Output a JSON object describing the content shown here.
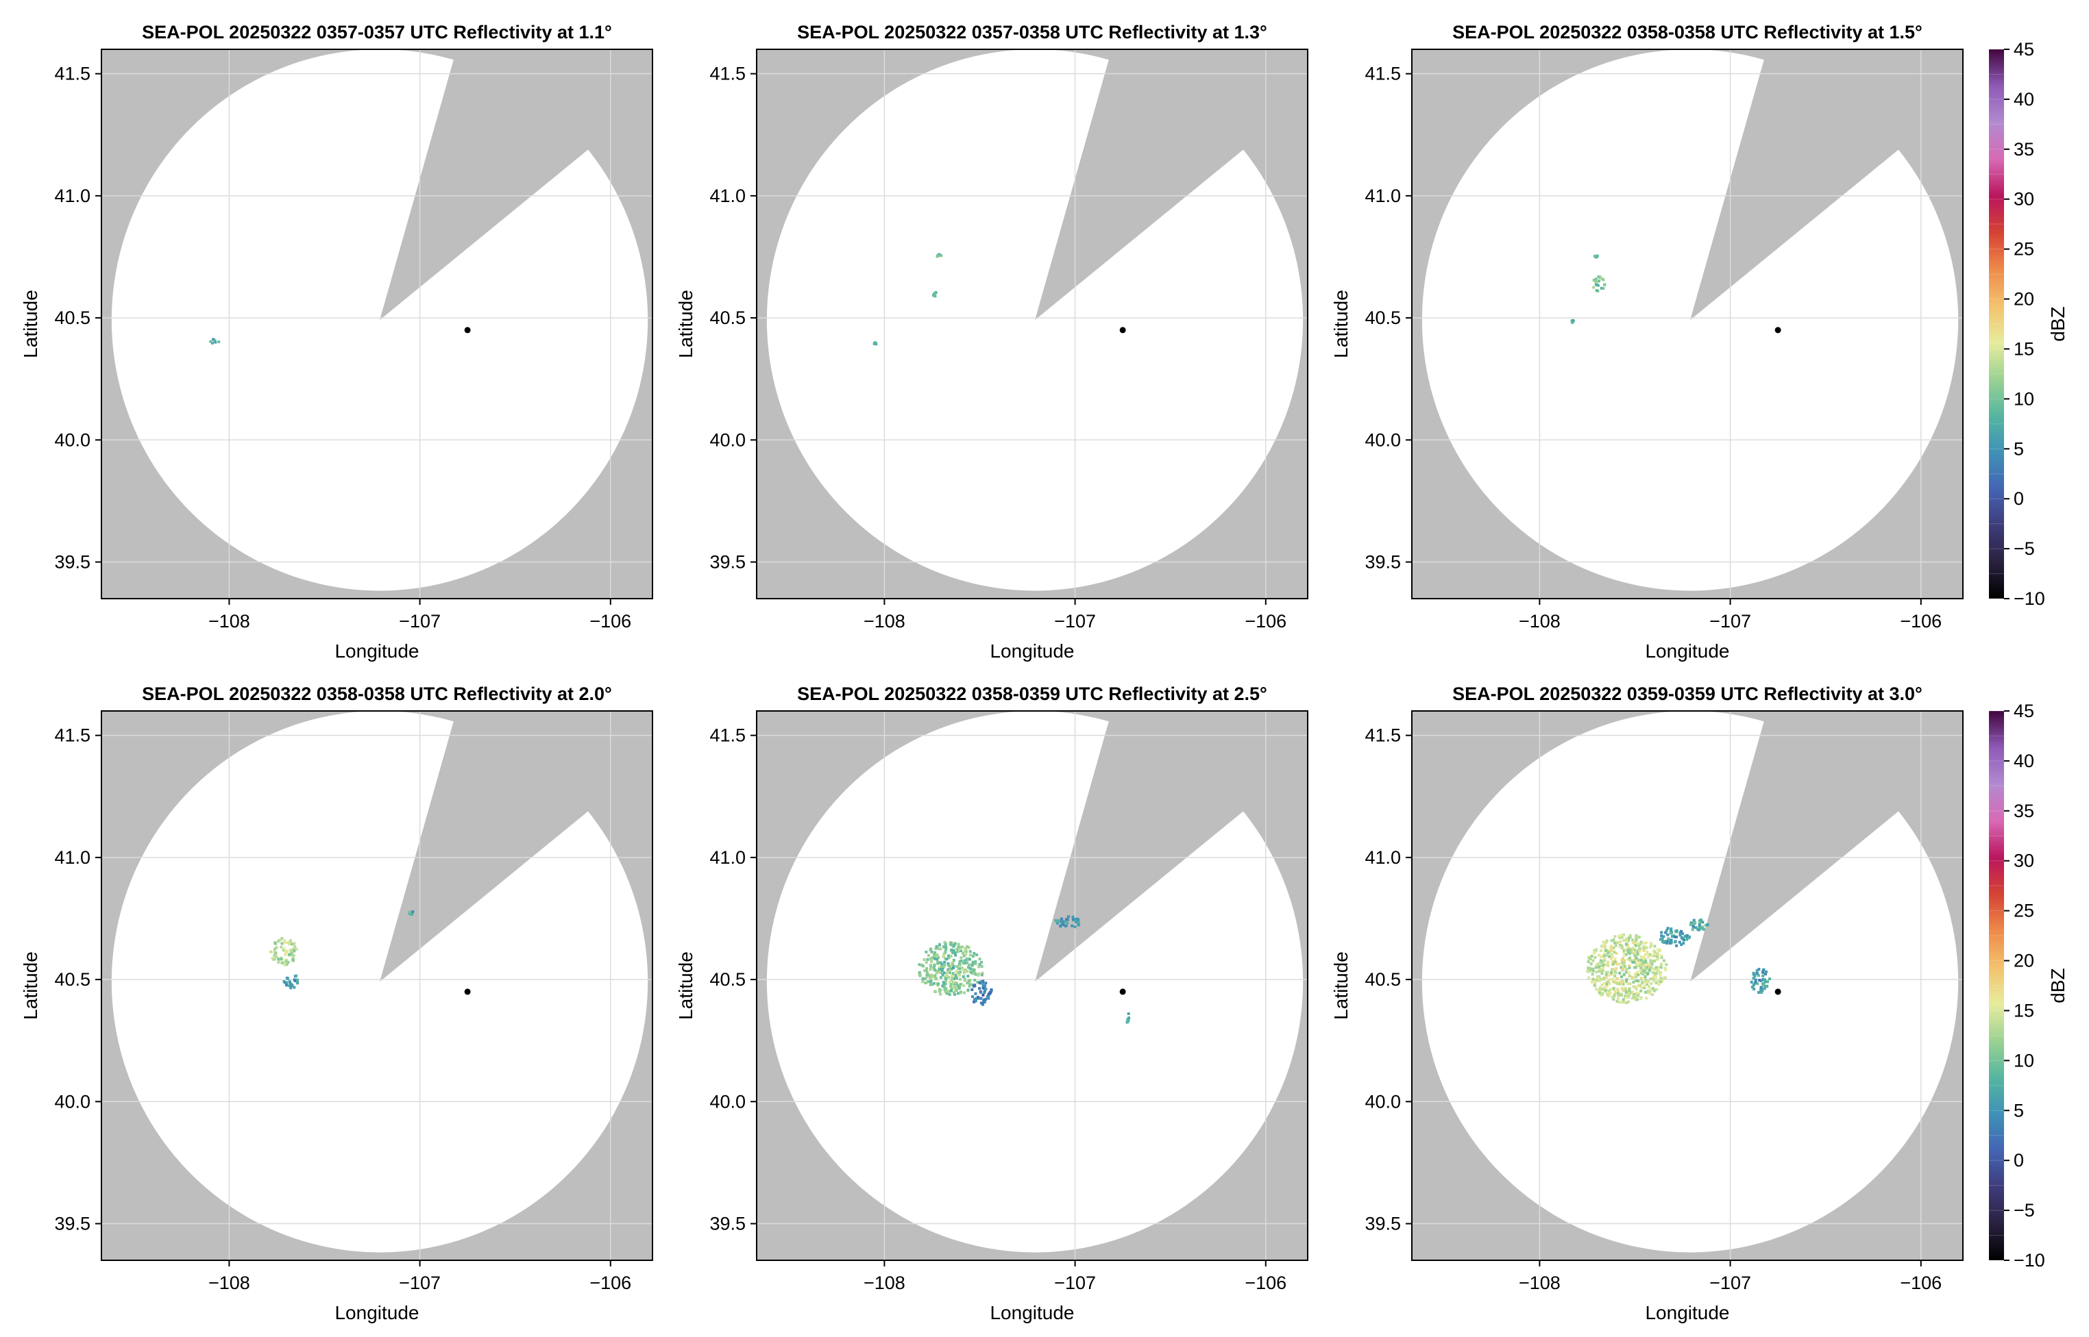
{
  "figure": {
    "colorbar": {
      "label": "dBZ",
      "ticks": [
        45,
        40,
        35,
        30,
        25,
        20,
        15,
        10,
        5,
        0,
        -5,
        -10
      ],
      "range": [
        -10,
        45
      ],
      "stops": [
        "#000000",
        "#2a2140",
        "#3e3c7a",
        "#4464b4",
        "#3f92b6",
        "#56b6a0",
        "#9cd292",
        "#e7ec9e",
        "#f3c26c",
        "#ee8a4a",
        "#d54235",
        "#b9165e",
        "#d86ab5",
        "#b28ad0",
        "#8e5ab6",
        "#42063e"
      ]
    },
    "colors": {
      "outside_range": "#bebebe",
      "inside_range": "#ffffff",
      "grid": "#dcdcdc",
      "radar_marker": "#000000"
    }
  },
  "chart_data": [
    {
      "type": "heatmap",
      "title": "SEA-POL 20250322 0357-0357 UTC Reflectivity at 1.1°",
      "xlabel": "Longitude",
      "ylabel": "Latitude",
      "xlim": [
        -108.67,
        -105.78
      ],
      "ylim": [
        39.35,
        41.6
      ],
      "xticks": [
        {
          "value": -108,
          "label": "−108"
        },
        {
          "value": -107,
          "label": "−107"
        },
        {
          "value": -106,
          "label": "−106"
        }
      ],
      "yticks": [
        {
          "value": 41.5,
          "label": "41.5"
        },
        {
          "value": 41.0,
          "label": "41.0"
        },
        {
          "value": 40.5,
          "label": "40.5"
        },
        {
          "value": 40.0,
          "label": "40.0"
        },
        {
          "value": 39.5,
          "label": "39.5"
        }
      ],
      "grid": true,
      "radar_site": {
        "lon": -106.75,
        "lat": 40.45
      },
      "echoes": [
        {
          "lon": -108.08,
          "lat": 40.41,
          "dlon": 0.06,
          "dlat": 0.02,
          "dbz": 8
        }
      ]
    },
    {
      "type": "heatmap",
      "title": "SEA-POL 20250322 0357-0358 UTC Reflectivity at 1.3°",
      "xlabel": "Longitude",
      "ylabel": "Latitude",
      "xlim": [
        -108.67,
        -105.78
      ],
      "ylim": [
        39.35,
        41.6
      ],
      "xticks": [
        {
          "value": -108,
          "label": "−108"
        },
        {
          "value": -107,
          "label": "−107"
        },
        {
          "value": -106,
          "label": "−106"
        }
      ],
      "yticks": [
        {
          "value": 41.5,
          "label": "41.5"
        },
        {
          "value": 41.0,
          "label": "41.0"
        },
        {
          "value": 40.5,
          "label": "40.5"
        },
        {
          "value": 40.0,
          "label": "40.0"
        },
        {
          "value": 39.5,
          "label": "39.5"
        }
      ],
      "grid": true,
      "radar_site": {
        "lon": -106.75,
        "lat": 40.45
      },
      "echoes": [
        {
          "lon": -108.06,
          "lat": 40.4,
          "dlon": 0.02,
          "dlat": 0.01,
          "dbz": 8
        },
        {
          "lon": -107.74,
          "lat": 40.6,
          "dlon": 0.02,
          "dlat": 0.02,
          "dbz": 8
        },
        {
          "lon": -107.72,
          "lat": 40.76,
          "dlon": 0.03,
          "dlat": 0.01,
          "dbz": 8
        }
      ]
    },
    {
      "type": "heatmap",
      "title": "SEA-POL 20250322 0358-0358 UTC Reflectivity at 1.5°",
      "xlabel": "Longitude",
      "ylabel": "Latitude",
      "xlim": [
        -108.67,
        -105.78
      ],
      "ylim": [
        39.35,
        41.6
      ],
      "xticks": [
        {
          "value": -108,
          "label": "−108"
        },
        {
          "value": -107,
          "label": "−107"
        },
        {
          "value": -106,
          "label": "−106"
        }
      ],
      "yticks": [
        {
          "value": 41.5,
          "label": "41.5"
        },
        {
          "value": 41.0,
          "label": "41.0"
        },
        {
          "value": 40.5,
          "label": "40.5"
        },
        {
          "value": 40.0,
          "label": "40.0"
        },
        {
          "value": 39.5,
          "label": "39.5"
        }
      ],
      "grid": true,
      "radar_site": {
        "lon": -106.75,
        "lat": 40.45
      },
      "echoes": [
        {
          "lon": -107.7,
          "lat": 40.64,
          "dlon": 0.07,
          "dlat": 0.07,
          "dbz": 10
        },
        {
          "lon": -107.71,
          "lat": 40.76,
          "dlon": 0.02,
          "dlat": 0.02,
          "dbz": 9
        },
        {
          "lon": -107.83,
          "lat": 40.49,
          "dlon": 0.02,
          "dlat": 0.01,
          "dbz": 8
        }
      ]
    },
    {
      "type": "heatmap",
      "title": "SEA-POL 20250322 0358-0358 UTC Reflectivity at 2.0°",
      "xlabel": "Longitude",
      "ylabel": "Latitude",
      "xlim": [
        -108.67,
        -105.78
      ],
      "ylim": [
        39.35,
        41.6
      ],
      "xticks": [
        {
          "value": -108,
          "label": "−108"
        },
        {
          "value": -107,
          "label": "−107"
        },
        {
          "value": -106,
          "label": "−106"
        }
      ],
      "yticks": [
        {
          "value": 41.5,
          "label": "41.5"
        },
        {
          "value": 41.0,
          "label": "41.0"
        },
        {
          "value": 40.5,
          "label": "40.5"
        },
        {
          "value": 40.0,
          "label": "40.0"
        },
        {
          "value": 39.5,
          "label": "39.5"
        }
      ],
      "grid": true,
      "radar_site": {
        "lon": -106.75,
        "lat": 40.45
      },
      "echoes": [
        {
          "lon": -107.72,
          "lat": 40.62,
          "dlon": 0.14,
          "dlat": 0.11,
          "dbz": 13
        },
        {
          "lon": -107.68,
          "lat": 40.5,
          "dlon": 0.08,
          "dlat": 0.06,
          "dbz": 6
        },
        {
          "lon": -107.05,
          "lat": 40.78,
          "dlon": 0.03,
          "dlat": 0.02,
          "dbz": 7
        }
      ]
    },
    {
      "type": "heatmap",
      "title": "SEA-POL 20250322 0358-0359 UTC Reflectivity at 2.5°",
      "xlabel": "Longitude",
      "ylabel": "Latitude",
      "xlim": [
        -108.67,
        -105.78
      ],
      "ylim": [
        39.35,
        41.6
      ],
      "xticks": [
        {
          "value": -108,
          "label": "−108"
        },
        {
          "value": -107,
          "label": "−107"
        },
        {
          "value": -106,
          "label": "−106"
        }
      ],
      "yticks": [
        {
          "value": 41.5,
          "label": "41.5"
        },
        {
          "value": 41.0,
          "label": "41.0"
        },
        {
          "value": 40.5,
          "label": "40.5"
        },
        {
          "value": 40.0,
          "label": "40.0"
        },
        {
          "value": 39.5,
          "label": "39.5"
        }
      ],
      "grid": true,
      "radar_site": {
        "lon": -106.75,
        "lat": 40.45
      },
      "echoes": [
        {
          "lon": -107.66,
          "lat": 40.55,
          "dlon": 0.34,
          "dlat": 0.22,
          "dbz": 11
        },
        {
          "lon": -107.5,
          "lat": 40.45,
          "dlon": 0.12,
          "dlat": 0.1,
          "dbz": 3
        },
        {
          "lon": -107.05,
          "lat": 40.74,
          "dlon": 0.14,
          "dlat": 0.05,
          "dbz": 6
        },
        {
          "lon": -106.73,
          "lat": 40.35,
          "dlon": 0.03,
          "dlat": 0.05,
          "dbz": 7
        }
      ]
    },
    {
      "type": "heatmap",
      "title": "SEA-POL 20250322 0359-0359 UTC Reflectivity at 3.0°",
      "xlabel": "Longitude",
      "ylabel": "Latitude",
      "xlim": [
        -108.67,
        -105.78
      ],
      "ylim": [
        39.35,
        41.6
      ],
      "xticks": [
        {
          "value": -108,
          "label": "−108"
        },
        {
          "value": -107,
          "label": "−107"
        },
        {
          "value": -106,
          "label": "−106"
        }
      ],
      "yticks": [
        {
          "value": 41.5,
          "label": "41.5"
        },
        {
          "value": 41.0,
          "label": "41.0"
        },
        {
          "value": 40.5,
          "label": "40.5"
        },
        {
          "value": 40.0,
          "label": "40.0"
        },
        {
          "value": 39.5,
          "label": "39.5"
        }
      ],
      "grid": true,
      "radar_site": {
        "lon": -106.75,
        "lat": 40.45
      },
      "echoes": [
        {
          "lon": -107.55,
          "lat": 40.55,
          "dlon": 0.42,
          "dlat": 0.28,
          "dbz": 14
        },
        {
          "lon": -107.3,
          "lat": 40.68,
          "dlon": 0.16,
          "dlat": 0.08,
          "dbz": 6
        },
        {
          "lon": -107.18,
          "lat": 40.73,
          "dlon": 0.12,
          "dlat": 0.05,
          "dbz": 8
        },
        {
          "lon": -106.85,
          "lat": 40.5,
          "dlon": 0.1,
          "dlat": 0.1,
          "dbz": 6
        }
      ]
    }
  ]
}
